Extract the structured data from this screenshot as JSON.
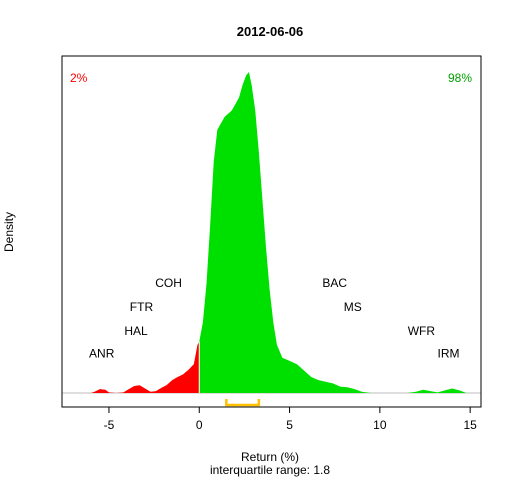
{
  "chart_data": {
    "type": "area",
    "title": "2012-06-06",
    "xlabel": "Return (%)",
    "ylabel": "Density",
    "subtitle": "interquartile range: 1.8",
    "xlim": [
      -7.6,
      15.6
    ],
    "ylim": [
      0,
      1.0
    ],
    "xticks": [
      -5,
      0,
      5,
      10,
      15
    ],
    "xtick_labels": [
      "-5",
      "0",
      "5",
      "10",
      "15"
    ],
    "left_pct": "2%",
    "right_pct": "98%",
    "colors": {
      "negative": "#ff0000",
      "positive": "#00e000",
      "iqr": "#ffc000",
      "baseline": "#bebebe"
    },
    "iqr_range": [
      1.5,
      3.3
    ],
    "density_points": [
      [
        -7.0,
        0.0
      ],
      [
        -6.0,
        0.0
      ],
      [
        -5.8,
        0.004
      ],
      [
        -5.5,
        0.012
      ],
      [
        -5.2,
        0.01
      ],
      [
        -5.0,
        0.002
      ],
      [
        -4.6,
        0.0
      ],
      [
        -4.2,
        0.002
      ],
      [
        -3.9,
        0.012
      ],
      [
        -3.6,
        0.022
      ],
      [
        -3.3,
        0.024
      ],
      [
        -3.0,
        0.014
      ],
      [
        -2.7,
        0.004
      ],
      [
        -2.4,
        0.006
      ],
      [
        -2.1,
        0.016
      ],
      [
        -1.8,
        0.025
      ],
      [
        -1.5,
        0.04
      ],
      [
        -1.2,
        0.05
      ],
      [
        -0.9,
        0.058
      ],
      [
        -0.6,
        0.072
      ],
      [
        -0.3,
        0.09
      ],
      [
        -0.1,
        0.15
      ],
      [
        0.0,
        0.16
      ],
      [
        0.2,
        0.22
      ],
      [
        0.4,
        0.34
      ],
      [
        0.6,
        0.52
      ],
      [
        0.8,
        0.72
      ],
      [
        1.0,
        0.82
      ],
      [
        1.2,
        0.84
      ],
      [
        1.4,
        0.86
      ],
      [
        1.6,
        0.87
      ],
      [
        1.8,
        0.88
      ],
      [
        2.0,
        0.9
      ],
      [
        2.2,
        0.92
      ],
      [
        2.4,
        0.96
      ],
      [
        2.6,
        0.99
      ],
      [
        2.75,
        1.0
      ],
      [
        2.9,
        0.96
      ],
      [
        3.1,
        0.88
      ],
      [
        3.3,
        0.75
      ],
      [
        3.5,
        0.6
      ],
      [
        3.7,
        0.45
      ],
      [
        3.9,
        0.32
      ],
      [
        4.1,
        0.22
      ],
      [
        4.3,
        0.15
      ],
      [
        4.6,
        0.11
      ],
      [
        5.0,
        0.1
      ],
      [
        5.4,
        0.09
      ],
      [
        5.8,
        0.07
      ],
      [
        6.2,
        0.05
      ],
      [
        6.6,
        0.04
      ],
      [
        7.0,
        0.035
      ],
      [
        7.4,
        0.03
      ],
      [
        7.8,
        0.02
      ],
      [
        8.2,
        0.018
      ],
      [
        8.6,
        0.012
      ],
      [
        9.0,
        0.004
      ],
      [
        9.5,
        0.0
      ],
      [
        11.5,
        0.0
      ],
      [
        12.0,
        0.004
      ],
      [
        12.4,
        0.01
      ],
      [
        12.8,
        0.006
      ],
      [
        13.2,
        0.002
      ],
      [
        13.6,
        0.008
      ],
      [
        14.0,
        0.014
      ],
      [
        14.4,
        0.008
      ],
      [
        14.8,
        0.0
      ],
      [
        15.6,
        0.0
      ]
    ],
    "annotations": [
      {
        "text": "ANR",
        "x": -5.4,
        "y": 0.11
      },
      {
        "text": "HAL",
        "x": -3.5,
        "y": 0.18
      },
      {
        "text": "FTR",
        "x": -3.2,
        "y": 0.255
      },
      {
        "text": "COH",
        "x": -1.7,
        "y": 0.33
      },
      {
        "text": "BAC",
        "x": 7.5,
        "y": 0.33
      },
      {
        "text": "MS",
        "x": 8.5,
        "y": 0.255
      },
      {
        "text": "WFR",
        "x": 12.3,
        "y": 0.18
      },
      {
        "text": "IRM",
        "x": 13.8,
        "y": 0.11
      }
    ]
  }
}
